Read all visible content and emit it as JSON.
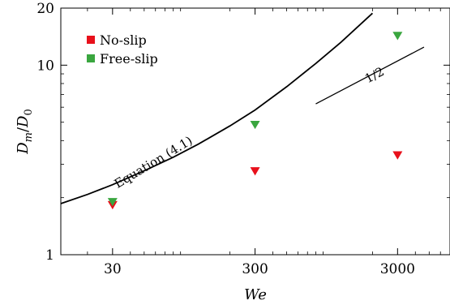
{
  "chart_data": {
    "type": "scatter",
    "xscale": "log",
    "yscale": "log",
    "xlim": [
      13,
      7000
    ],
    "ylim": [
      1,
      20
    ],
    "xticks": [
      30,
      300,
      3000
    ],
    "xtick_labels": [
      "30",
      "300",
      "3000"
    ],
    "yticks": [
      1,
      10,
      20
    ],
    "ytick_labels": [
      "1",
      "10",
      "20"
    ],
    "xlabel": "We",
    "ylabel_parts": {
      "D1": "D",
      "sub1": "m",
      "slash": "/",
      "D2": "D",
      "sub2": "0"
    },
    "legend_position": "top-left",
    "series": [
      {
        "name": "No-slip",
        "color": "#e8101b",
        "marker": "triangle-down",
        "x": [
          30,
          300,
          3000
        ],
        "y": [
          1.83,
          2.76,
          3.35
        ]
      },
      {
        "name": "Free-slip",
        "color": "#3aa63f",
        "marker": "triangle-down",
        "x": [
          30,
          300,
          3000
        ],
        "y": [
          1.9,
          4.85,
          14.3
        ]
      }
    ],
    "curve": {
      "label": "Equation (4.1)",
      "x": [
        13,
        20,
        30,
        50,
        80,
        120,
        200,
        300,
        500,
        800,
        1200,
        2000
      ],
      "y": [
        1.86,
        2.08,
        2.34,
        2.77,
        3.27,
        3.83,
        4.78,
        5.8,
        7.7,
        10.2,
        13.2,
        18.8
      ]
    },
    "slope_annotation": {
      "label": "1/2",
      "x": [
        800,
        4600
      ],
      "y": [
        6.25,
        12.45
      ]
    }
  }
}
